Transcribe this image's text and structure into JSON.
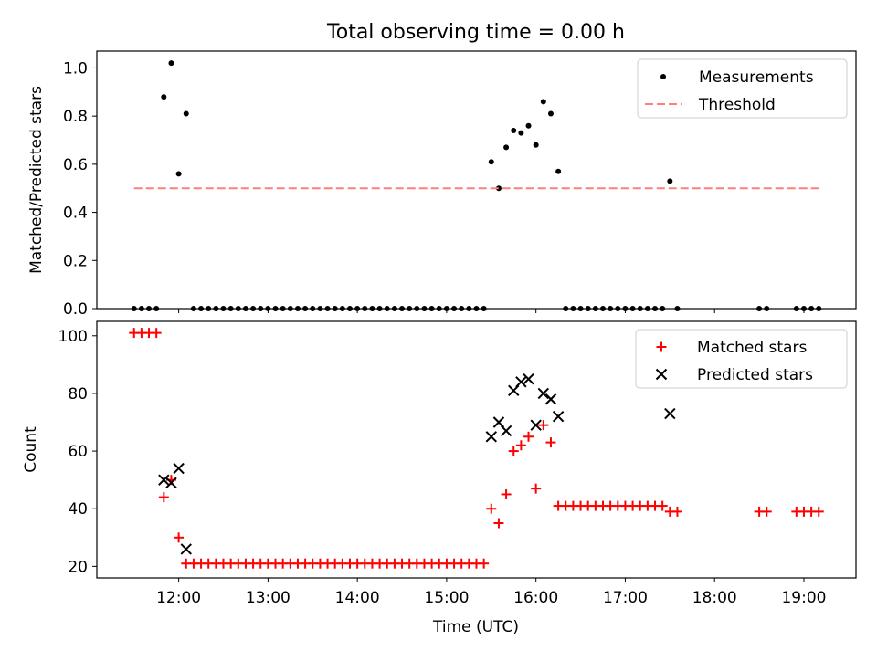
{
  "title": "Total observing time = 0.00 h",
  "xlabel": "Time (UTC)",
  "x_ticks": [
    "12:00",
    "13:00",
    "14:00",
    "15:00",
    "16:00",
    "17:00",
    "18:00",
    "19:00"
  ],
  "colors": {
    "measurement": "#000000",
    "threshold": "#ff7f7f",
    "matched": "#ff0000",
    "predicted": "#000000"
  },
  "chart_data": [
    {
      "type": "scatter",
      "ylabel": "Matched/Predicted stars",
      "xlim": [
        "11:05",
        "19:35"
      ],
      "ylim": [
        0,
        1.07
      ],
      "y_ticks": [
        "0.0",
        "0.2",
        "0.4",
        "0.6",
        "0.8",
        "1.0"
      ],
      "legend_placement": "top-right",
      "series": [
        {
          "name": "Measurements",
          "marker": "dot",
          "points": [
            [
              "11:30",
              0
            ],
            [
              "11:35",
              0
            ],
            [
              "11:40",
              0
            ],
            [
              "11:45",
              0
            ],
            [
              "11:50",
              0.88
            ],
            [
              "11:55",
              1.02
            ],
            [
              "12:00",
              0.56
            ],
            [
              "12:05",
              0.81
            ],
            [
              "12:10",
              0
            ],
            [
              "12:15",
              0
            ],
            [
              "12:20",
              0
            ],
            [
              "12:25",
              0
            ],
            [
              "12:30",
              0
            ],
            [
              "12:35",
              0
            ],
            [
              "12:40",
              0
            ],
            [
              "12:45",
              0
            ],
            [
              "12:50",
              0
            ],
            [
              "12:55",
              0
            ],
            [
              "13:00",
              0
            ],
            [
              "13:05",
              0
            ],
            [
              "13:10",
              0
            ],
            [
              "13:15",
              0
            ],
            [
              "13:20",
              0
            ],
            [
              "13:25",
              0
            ],
            [
              "13:30",
              0
            ],
            [
              "13:35",
              0
            ],
            [
              "13:40",
              0
            ],
            [
              "13:45",
              0
            ],
            [
              "13:50",
              0
            ],
            [
              "13:55",
              0
            ],
            [
              "14:00",
              0
            ],
            [
              "14:05",
              0
            ],
            [
              "14:10",
              0
            ],
            [
              "14:15",
              0
            ],
            [
              "14:20",
              0
            ],
            [
              "14:25",
              0
            ],
            [
              "14:30",
              0
            ],
            [
              "14:35",
              0
            ],
            [
              "14:40",
              0
            ],
            [
              "14:45",
              0
            ],
            [
              "14:50",
              0
            ],
            [
              "14:55",
              0
            ],
            [
              "15:00",
              0
            ],
            [
              "15:05",
              0
            ],
            [
              "15:10",
              0
            ],
            [
              "15:15",
              0
            ],
            [
              "15:20",
              0
            ],
            [
              "15:25",
              0
            ],
            [
              "15:30",
              0.61
            ],
            [
              "15:35",
              0.5
            ],
            [
              "15:40",
              0.67
            ],
            [
              "15:45",
              0.74
            ],
            [
              "15:50",
              0.73
            ],
            [
              "15:55",
              0.76
            ],
            [
              "16:00",
              0.68
            ],
            [
              "16:05",
              0.86
            ],
            [
              "16:10",
              0.81
            ],
            [
              "16:15",
              0.57
            ],
            [
              "16:20",
              0
            ],
            [
              "16:25",
              0
            ],
            [
              "16:30",
              0
            ],
            [
              "16:35",
              0
            ],
            [
              "16:40",
              0
            ],
            [
              "16:45",
              0
            ],
            [
              "16:50",
              0
            ],
            [
              "16:55",
              0
            ],
            [
              "17:00",
              0
            ],
            [
              "17:05",
              0
            ],
            [
              "17:10",
              0
            ],
            [
              "17:15",
              0
            ],
            [
              "17:20",
              0
            ],
            [
              "17:25",
              0
            ],
            [
              "17:30",
              0.53
            ],
            [
              "17:35",
              0
            ],
            [
              "18:30",
              0
            ],
            [
              "18:35",
              0
            ],
            [
              "18:55",
              0
            ],
            [
              "19:00",
              0
            ],
            [
              "19:05",
              0
            ],
            [
              "19:10",
              0
            ]
          ]
        },
        {
          "name": "Threshold",
          "marker": "dashed-line",
          "points": [
            [
              "11:30",
              0.5
            ],
            [
              "19:10",
              0.5
            ]
          ]
        }
      ]
    },
    {
      "type": "scatter",
      "ylabel": "Count",
      "xlim": [
        "11:05",
        "19:35"
      ],
      "ylim": [
        16,
        105
      ],
      "y_ticks": [
        "20",
        "40",
        "60",
        "80",
        "100"
      ],
      "legend_placement": "top-right",
      "series": [
        {
          "name": "Matched stars",
          "marker": "plus",
          "points": [
            [
              "11:30",
              101
            ],
            [
              "11:35",
              101
            ],
            [
              "11:40",
              101
            ],
            [
              "11:45",
              101
            ],
            [
              "11:50",
              44
            ],
            [
              "11:55",
              50
            ],
            [
              "12:00",
              30
            ],
            [
              "12:05",
              21
            ],
            [
              "12:10",
              21
            ],
            [
              "12:15",
              21
            ],
            [
              "12:20",
              21
            ],
            [
              "12:25",
              21
            ],
            [
              "12:30",
              21
            ],
            [
              "12:35",
              21
            ],
            [
              "12:40",
              21
            ],
            [
              "12:45",
              21
            ],
            [
              "12:50",
              21
            ],
            [
              "12:55",
              21
            ],
            [
              "13:00",
              21
            ],
            [
              "13:05",
              21
            ],
            [
              "13:10",
              21
            ],
            [
              "13:15",
              21
            ],
            [
              "13:20",
              21
            ],
            [
              "13:25",
              21
            ],
            [
              "13:30",
              21
            ],
            [
              "13:35",
              21
            ],
            [
              "13:40",
              21
            ],
            [
              "13:45",
              21
            ],
            [
              "13:50",
              21
            ],
            [
              "13:55",
              21
            ],
            [
              "14:00",
              21
            ],
            [
              "14:05",
              21
            ],
            [
              "14:10",
              21
            ],
            [
              "14:15",
              21
            ],
            [
              "14:20",
              21
            ],
            [
              "14:25",
              21
            ],
            [
              "14:30",
              21
            ],
            [
              "14:35",
              21
            ],
            [
              "14:40",
              21
            ],
            [
              "14:45",
              21
            ],
            [
              "14:50",
              21
            ],
            [
              "14:55",
              21
            ],
            [
              "15:00",
              21
            ],
            [
              "15:05",
              21
            ],
            [
              "15:10",
              21
            ],
            [
              "15:15",
              21
            ],
            [
              "15:20",
              21
            ],
            [
              "15:25",
              21
            ],
            [
              "15:30",
              40
            ],
            [
              "15:35",
              35
            ],
            [
              "15:40",
              45
            ],
            [
              "15:45",
              60
            ],
            [
              "15:50",
              62
            ],
            [
              "15:55",
              65
            ],
            [
              "16:00",
              47
            ],
            [
              "16:05",
              69
            ],
            [
              "16:10",
              63
            ],
            [
              "16:15",
              41
            ],
            [
              "16:20",
              41
            ],
            [
              "16:25",
              41
            ],
            [
              "16:30",
              41
            ],
            [
              "16:35",
              41
            ],
            [
              "16:40",
              41
            ],
            [
              "16:45",
              41
            ],
            [
              "16:50",
              41
            ],
            [
              "16:55",
              41
            ],
            [
              "17:00",
              41
            ],
            [
              "17:05",
              41
            ],
            [
              "17:10",
              41
            ],
            [
              "17:15",
              41
            ],
            [
              "17:20",
              41
            ],
            [
              "17:25",
              41
            ],
            [
              "17:30",
              39
            ],
            [
              "17:35",
              39
            ],
            [
              "18:30",
              39
            ],
            [
              "18:35",
              39
            ],
            [
              "18:55",
              39
            ],
            [
              "19:00",
              39
            ],
            [
              "19:05",
              39
            ],
            [
              "19:10",
              39
            ]
          ]
        },
        {
          "name": "Predicted stars",
          "marker": "x",
          "points": [
            [
              "11:50",
              50
            ],
            [
              "11:55",
              49
            ],
            [
              "12:00",
              54
            ],
            [
              "12:05",
              26
            ],
            [
              "15:30",
              65
            ],
            [
              "15:35",
              70
            ],
            [
              "15:40",
              67
            ],
            [
              "15:45",
              81
            ],
            [
              "15:50",
              84
            ],
            [
              "15:55",
              85
            ],
            [
              "16:00",
              69
            ],
            [
              "16:05",
              80
            ],
            [
              "16:10",
              78
            ],
            [
              "16:15",
              72
            ],
            [
              "17:30",
              73
            ]
          ]
        }
      ]
    }
  ]
}
